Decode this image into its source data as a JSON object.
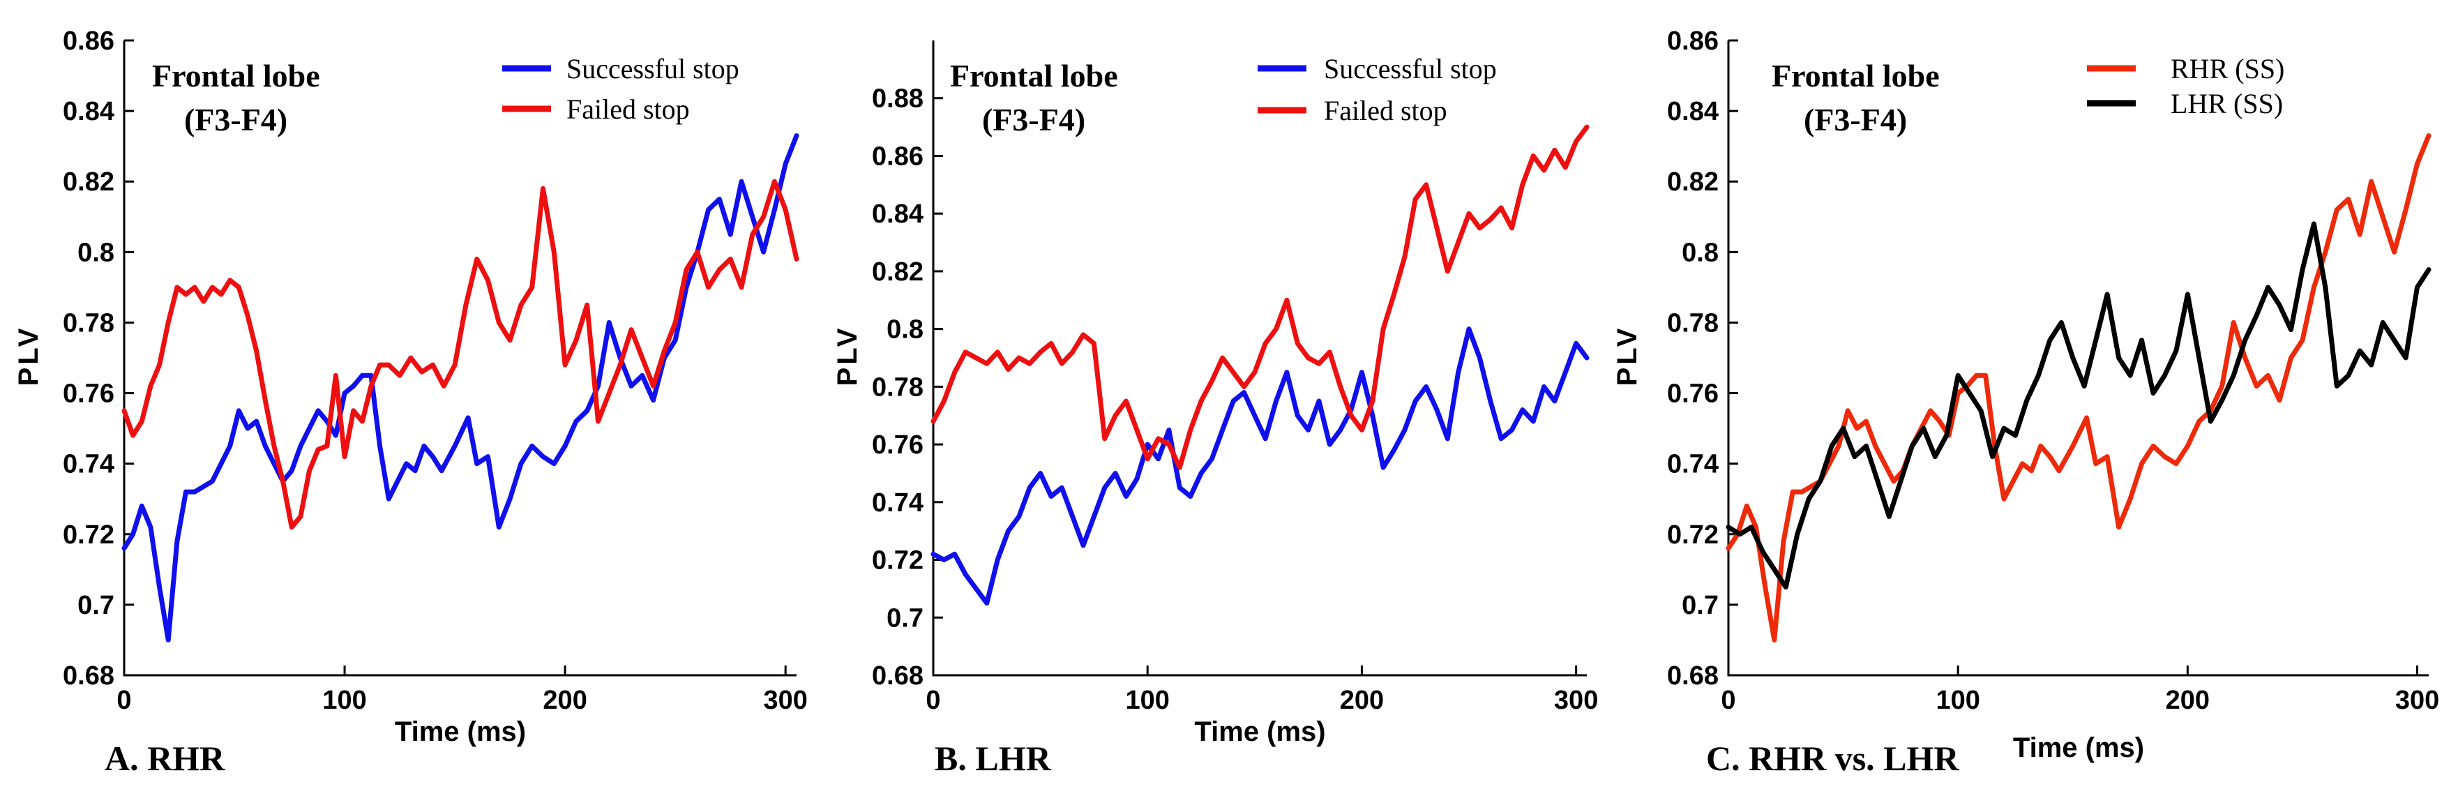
{
  "chart_data": [
    {
      "type": "line",
      "panel_label": "A. RHR",
      "annotation": [
        "Frontal lobe",
        "(F3-F4)"
      ],
      "xlabel": "Time (ms)",
      "ylabel": "PLV",
      "xlim": [
        0,
        305
      ],
      "ylim": [
        0.68,
        0.86
      ],
      "xticks": [
        "0",
        "100",
        "200",
        "300"
      ],
      "yticks": [
        "0.68",
        "0.7",
        "0.72",
        "0.74",
        "0.76",
        "0.78",
        "0.8",
        "0.82",
        "0.84",
        "0.86"
      ],
      "legend_position": "top-right",
      "series": [
        {
          "name": "Successful stop",
          "color": "#1010ee",
          "x": [
            0,
            4,
            8,
            12,
            16,
            20,
            24,
            28,
            32,
            40,
            48,
            52,
            56,
            60,
            64,
            68,
            72,
            76,
            80,
            84,
            88,
            92,
            96,
            100,
            104,
            108,
            112,
            116,
            120,
            124,
            128,
            132,
            136,
            140,
            144,
            150,
            156,
            160,
            165,
            170,
            175,
            180,
            185,
            190,
            195,
            200,
            205,
            210,
            215,
            220,
            225,
            230,
            235,
            240,
            245,
            250,
            255,
            260,
            265,
            270,
            275,
            280,
            285,
            290,
            295,
            300,
            305
          ],
          "values": [
            0.716,
            0.72,
            0.728,
            0.722,
            0.705,
            0.69,
            0.718,
            0.732,
            0.732,
            0.735,
            0.745,
            0.755,
            0.75,
            0.752,
            0.745,
            0.74,
            0.735,
            0.738,
            0.745,
            0.75,
            0.755,
            0.752,
            0.748,
            0.76,
            0.762,
            0.765,
            0.765,
            0.745,
            0.73,
            0.735,
            0.74,
            0.738,
            0.745,
            0.742,
            0.738,
            0.745,
            0.753,
            0.74,
            0.742,
            0.722,
            0.73,
            0.74,
            0.745,
            0.742,
            0.74,
            0.745,
            0.752,
            0.755,
            0.762,
            0.78,
            0.77,
            0.762,
            0.765,
            0.758,
            0.77,
            0.775,
            0.79,
            0.8,
            0.812,
            0.815,
            0.805,
            0.82,
            0.81,
            0.8,
            0.812,
            0.825,
            0.833
          ]
        },
        {
          "name": "Failed stop",
          "color": "#ee1010",
          "x": [
            0,
            4,
            8,
            12,
            16,
            20,
            24,
            28,
            32,
            36,
            40,
            44,
            48,
            52,
            56,
            60,
            64,
            68,
            72,
            76,
            80,
            84,
            88,
            92,
            96,
            100,
            104,
            108,
            112,
            116,
            120,
            125,
            130,
            135,
            140,
            145,
            150,
            155,
            160,
            165,
            170,
            175,
            180,
            185,
            190,
            195,
            200,
            205,
            210,
            215,
            220,
            225,
            230,
            235,
            240,
            245,
            250,
            255,
            260,
            265,
            270,
            275,
            280,
            285,
            290,
            295,
            300,
            305
          ],
          "values": [
            0.755,
            0.748,
            0.752,
            0.762,
            0.768,
            0.78,
            0.79,
            0.788,
            0.79,
            0.786,
            0.79,
            0.788,
            0.792,
            0.79,
            0.782,
            0.772,
            0.758,
            0.745,
            0.735,
            0.722,
            0.725,
            0.738,
            0.744,
            0.745,
            0.765,
            0.742,
            0.755,
            0.752,
            0.762,
            0.768,
            0.768,
            0.765,
            0.77,
            0.766,
            0.768,
            0.762,
            0.768,
            0.785,
            0.798,
            0.792,
            0.78,
            0.775,
            0.785,
            0.79,
            0.818,
            0.8,
            0.768,
            0.775,
            0.785,
            0.752,
            0.76,
            0.768,
            0.778,
            0.77,
            0.762,
            0.772,
            0.78,
            0.795,
            0.8,
            0.79,
            0.795,
            0.798,
            0.79,
            0.805,
            0.81,
            0.82,
            0.812,
            0.798
          ]
        }
      ]
    },
    {
      "type": "line",
      "panel_label": "B. LHR",
      "annotation": [
        "Frontal lobe",
        "(F3-F4)"
      ],
      "xlabel": "Time (ms)",
      "ylabel": "PLV",
      "xlim": [
        0,
        305
      ],
      "ylim": [
        0.68,
        0.9
      ],
      "xticks": [
        "0",
        "100",
        "200",
        "300"
      ],
      "yticks": [
        "0.68",
        "0.7",
        "0.72",
        "0.74",
        "0.76",
        "0.78",
        "0.8",
        "0.82",
        "0.84",
        "0.86",
        "0.88"
      ],
      "legend_position": "top-right",
      "series": [
        {
          "name": "Successful stop",
          "color": "#1010ee",
          "x": [
            0,
            5,
            10,
            15,
            20,
            25,
            30,
            35,
            40,
            45,
            50,
            55,
            60,
            65,
            70,
            75,
            80,
            85,
            90,
            95,
            100,
            105,
            110,
            115,
            120,
            125,
            130,
            135,
            140,
            145,
            150,
            155,
            160,
            165,
            170,
            175,
            180,
            185,
            190,
            195,
            200,
            205,
            210,
            215,
            220,
            225,
            230,
            235,
            240,
            245,
            250,
            255,
            260,
            265,
            270,
            275,
            280,
            285,
            290,
            295,
            300,
            305
          ],
          "values": [
            0.722,
            0.72,
            0.722,
            0.715,
            0.71,
            0.705,
            0.72,
            0.73,
            0.735,
            0.745,
            0.75,
            0.742,
            0.745,
            0.735,
            0.725,
            0.735,
            0.745,
            0.75,
            0.742,
            0.748,
            0.76,
            0.755,
            0.765,
            0.745,
            0.742,
            0.75,
            0.755,
            0.765,
            0.775,
            0.778,
            0.77,
            0.762,
            0.775,
            0.785,
            0.77,
            0.765,
            0.775,
            0.76,
            0.765,
            0.772,
            0.785,
            0.77,
            0.752,
            0.758,
            0.765,
            0.775,
            0.78,
            0.772,
            0.762,
            0.785,
            0.8,
            0.79,
            0.775,
            0.762,
            0.765,
            0.772,
            0.768,
            0.78,
            0.775,
            0.785,
            0.795,
            0.79
          ]
        },
        {
          "name": "Failed stop",
          "color": "#ee1010",
          "x": [
            0,
            5,
            10,
            15,
            20,
            25,
            30,
            35,
            40,
            45,
            50,
            55,
            60,
            65,
            70,
            75,
            80,
            85,
            90,
            95,
            100,
            105,
            110,
            115,
            120,
            125,
            130,
            135,
            140,
            145,
            150,
            155,
            160,
            165,
            170,
            175,
            180,
            185,
            190,
            195,
            200,
            205,
            210,
            215,
            220,
            225,
            230,
            235,
            240,
            245,
            250,
            255,
            260,
            265,
            270,
            275,
            280,
            285,
            290,
            295,
            300,
            305
          ],
          "values": [
            0.768,
            0.775,
            0.785,
            0.792,
            0.79,
            0.788,
            0.792,
            0.786,
            0.79,
            0.788,
            0.792,
            0.795,
            0.788,
            0.792,
            0.798,
            0.795,
            0.762,
            0.77,
            0.775,
            0.765,
            0.755,
            0.762,
            0.76,
            0.752,
            0.765,
            0.775,
            0.782,
            0.79,
            0.785,
            0.78,
            0.785,
            0.795,
            0.8,
            0.81,
            0.795,
            0.79,
            0.788,
            0.792,
            0.78,
            0.77,
            0.765,
            0.775,
            0.8,
            0.812,
            0.825,
            0.845,
            0.85,
            0.835,
            0.82,
            0.83,
            0.84,
            0.835,
            0.838,
            0.842,
            0.835,
            0.85,
            0.86,
            0.855,
            0.862,
            0.856,
            0.865,
            0.87
          ]
        }
      ]
    },
    {
      "type": "line",
      "panel_label": "C. RHR vs. LHR",
      "annotation": [
        "Frontal lobe",
        "(F3-F4)"
      ],
      "xlabel": "Time (ms)",
      "ylabel": "PLV",
      "xlim": [
        0,
        305
      ],
      "ylim": [
        0.68,
        0.86
      ],
      "xticks": [
        "0",
        "100",
        "200",
        "300"
      ],
      "yticks": [
        "0.68",
        "0.7",
        "0.72",
        "0.74",
        "0.76",
        "0.78",
        "0.8",
        "0.82",
        "0.84",
        "0.86"
      ],
      "legend_position": "top-right",
      "series": [
        {
          "name": "RHR (SS)",
          "color": "#ee2a0a",
          "x": [
            0,
            4,
            8,
            12,
            16,
            20,
            24,
            28,
            32,
            40,
            48,
            52,
            56,
            60,
            64,
            68,
            72,
            76,
            80,
            84,
            88,
            92,
            96,
            100,
            104,
            108,
            112,
            116,
            120,
            124,
            128,
            132,
            136,
            140,
            144,
            150,
            156,
            160,
            165,
            170,
            175,
            180,
            185,
            190,
            195,
            200,
            205,
            210,
            215,
            220,
            225,
            230,
            235,
            240,
            245,
            250,
            255,
            260,
            265,
            270,
            275,
            280,
            285,
            290,
            295,
            300,
            305
          ],
          "values": [
            0.716,
            0.72,
            0.728,
            0.722,
            0.705,
            0.69,
            0.718,
            0.732,
            0.732,
            0.735,
            0.745,
            0.755,
            0.75,
            0.752,
            0.745,
            0.74,
            0.735,
            0.738,
            0.745,
            0.75,
            0.755,
            0.752,
            0.748,
            0.76,
            0.762,
            0.765,
            0.765,
            0.745,
            0.73,
            0.735,
            0.74,
            0.738,
            0.745,
            0.742,
            0.738,
            0.745,
            0.753,
            0.74,
            0.742,
            0.722,
            0.73,
            0.74,
            0.745,
            0.742,
            0.74,
            0.745,
            0.752,
            0.755,
            0.762,
            0.78,
            0.77,
            0.762,
            0.765,
            0.758,
            0.77,
            0.775,
            0.79,
            0.8,
            0.812,
            0.815,
            0.805,
            0.82,
            0.81,
            0.8,
            0.812,
            0.825,
            0.833
          ]
        },
        {
          "name": "LHR (SS)",
          "color": "#000000",
          "x": [
            0,
            5,
            10,
            15,
            20,
            25,
            30,
            35,
            40,
            45,
            50,
            55,
            60,
            65,
            70,
            75,
            80,
            85,
            90,
            95,
            100,
            105,
            110,
            115,
            120,
            125,
            130,
            135,
            140,
            145,
            150,
            155,
            160,
            165,
            170,
            175,
            180,
            185,
            190,
            195,
            200,
            205,
            210,
            215,
            220,
            225,
            230,
            235,
            240,
            245,
            250,
            255,
            260,
            265,
            270,
            275,
            280,
            285,
            290,
            295,
            300,
            305
          ],
          "values": [
            0.722,
            0.72,
            0.722,
            0.715,
            0.71,
            0.705,
            0.72,
            0.73,
            0.735,
            0.745,
            0.75,
            0.742,
            0.745,
            0.735,
            0.725,
            0.735,
            0.745,
            0.75,
            0.742,
            0.748,
            0.765,
            0.76,
            0.755,
            0.742,
            0.75,
            0.748,
            0.758,
            0.765,
            0.775,
            0.78,
            0.77,
            0.762,
            0.775,
            0.788,
            0.77,
            0.765,
            0.775,
            0.76,
            0.765,
            0.772,
            0.788,
            0.77,
            0.752,
            0.758,
            0.765,
            0.775,
            0.782,
            0.79,
            0.785,
            0.778,
            0.795,
            0.808,
            0.79,
            0.762,
            0.765,
            0.772,
            0.768,
            0.78,
            0.775,
            0.77,
            0.79,
            0.795
          ]
        }
      ]
    }
  ]
}
